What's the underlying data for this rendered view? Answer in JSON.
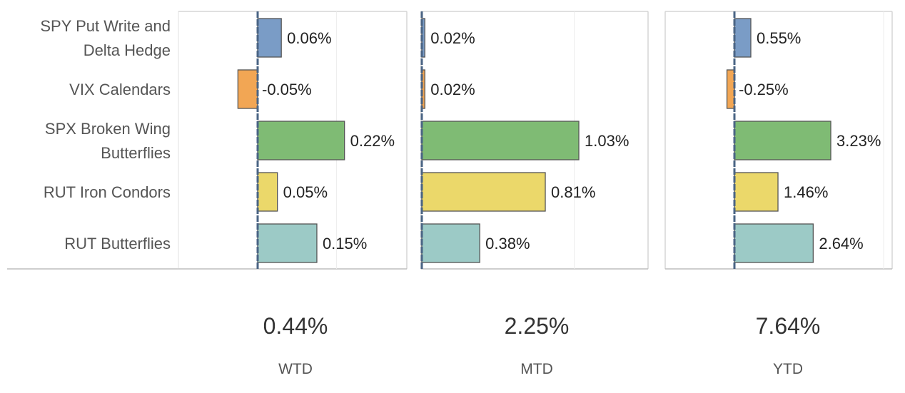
{
  "chart_data": {
    "type": "bar",
    "orientation": "horizontal",
    "categories": [
      [
        "SPY Put Write and",
        "Delta Hedge"
      ],
      [
        "VIX Calendars"
      ],
      [
        "SPX Broken Wing",
        "Butterflies"
      ],
      [
        "RUT Iron Condors"
      ],
      [
        "RUT Butterflies"
      ]
    ],
    "bar_colors": [
      "#7a9cc6",
      "#f2a654",
      "#7fbb74",
      "#ebd86a",
      "#9ccac6"
    ],
    "bar_stroke": "#555555",
    "zero_line_color": "#4a6484",
    "grid": true,
    "panels": [
      {
        "name": "WTD",
        "total": "0.44%",
        "values": [
          0.06,
          -0.05,
          0.22,
          0.05,
          0.15
        ],
        "labels": [
          "0.06%",
          "-0.05%",
          "0.22%",
          "0.05%",
          "0.15%"
        ]
      },
      {
        "name": "MTD",
        "total": "2.25%",
        "values": [
          0.02,
          0.02,
          1.03,
          0.81,
          0.38
        ],
        "labels": [
          "0.02%",
          "0.02%",
          "1.03%",
          "0.81%",
          "0.38%"
        ]
      },
      {
        "name": "YTD",
        "total": "7.64%",
        "values": [
          0.55,
          -0.25,
          3.23,
          1.46,
          2.64
        ],
        "labels": [
          "0.55%",
          "-0.25%",
          "3.23%",
          "1.46%",
          "2.64%"
        ]
      }
    ]
  }
}
